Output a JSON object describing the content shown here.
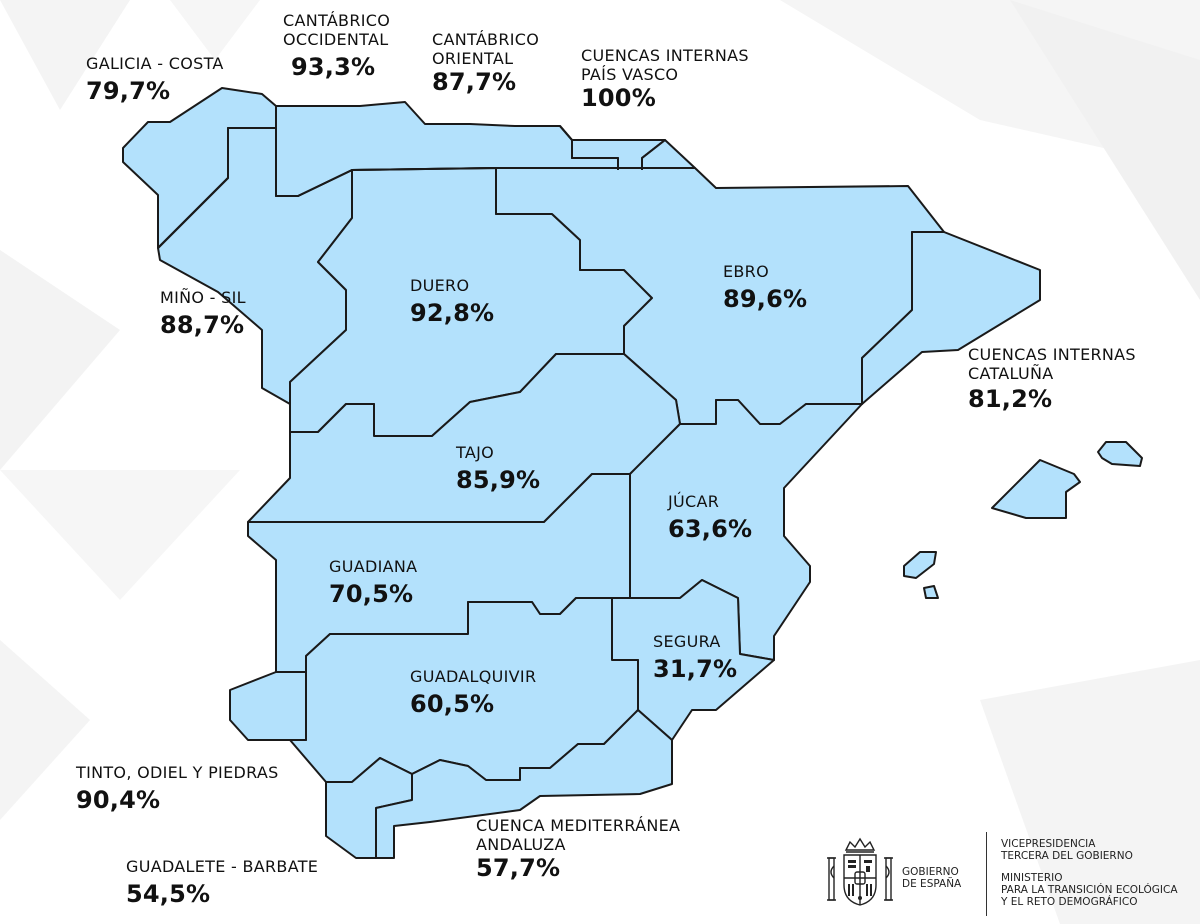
{
  "colors": {
    "basin_fill": "#b3e1fc",
    "basin_stroke": "#1a1a1a",
    "text": "#111111",
    "background": "#ffffff",
    "background_shapes": "#f3f3f3"
  },
  "basins": [
    {
      "id": "galicia-costa",
      "name": "GALICIA - COSTA",
      "percent": "79,7%"
    },
    {
      "id": "cantabrico-occidental",
      "name": "CANTÁBRICO OCCIDENTAL",
      "name_lines": [
        "CANTÁBRICO",
        "OCCIDENTAL"
      ],
      "percent": "93,3%"
    },
    {
      "id": "cantabrico-oriental",
      "name": "CANTÁBRICO ORIENTAL",
      "name_lines": [
        "CANTÁBRICO",
        "ORIENTAL"
      ],
      "percent": "87,7%"
    },
    {
      "id": "pais-vasco",
      "name": "CUENCAS INTERNAS PAÍS VASCO",
      "name_lines": [
        "CUENCAS INTERNAS",
        "PAÍS VASCO"
      ],
      "percent": "100%"
    },
    {
      "id": "mino-sil",
      "name": "MIÑO - SIL",
      "percent": "88,7%"
    },
    {
      "id": "duero",
      "name": "DUERO",
      "percent": "92,8%"
    },
    {
      "id": "ebro",
      "name": "EBRO",
      "percent": "89,6%"
    },
    {
      "id": "cataluna",
      "name": "CUENCAS INTERNAS CATALUÑA",
      "name_lines": [
        "CUENCAS INTERNAS",
        "CATALUÑA"
      ],
      "percent": "81,2%"
    },
    {
      "id": "tajo",
      "name": "TAJO",
      "percent": "85,9%"
    },
    {
      "id": "jucar",
      "name": "JÚCAR",
      "percent": "63,6%"
    },
    {
      "id": "guadiana",
      "name": "GUADIANA",
      "percent": "70,5%"
    },
    {
      "id": "segura",
      "name": "SEGURA",
      "percent": "31,7%"
    },
    {
      "id": "guadalquivir",
      "name": "GUADALQUIVIR",
      "percent": "60,5%"
    },
    {
      "id": "tinto-odiel-piedras",
      "name": "TINTO, ODIEL Y PIEDRAS",
      "percent": "90,4%"
    },
    {
      "id": "mediterranea-andaluza",
      "name": "CUENCA MEDITERRÁNEA ANDALUZA",
      "name_lines": [
        "CUENCA MEDITERRÁNEA",
        "ANDALUZA"
      ],
      "percent": "57,7%"
    },
    {
      "id": "guadalete-barbate",
      "name": "GUADALETE - BARBATE",
      "percent": "54,5%"
    }
  ],
  "footer": {
    "gobierno_lines": [
      "GOBIERNO",
      "DE ESPAÑA"
    ],
    "vicepresidencia_lines": [
      "VICEPRESIDENCIA",
      "TERCERA DEL GOBIERNO"
    ],
    "ministerio_lines": [
      "MINISTERIO",
      "PARA LA TRANSICIÓN ECOLÓGICA",
      "Y EL RETO DEMOGRÁFICO"
    ],
    "coat_of_arms_icon": "spain-coat-of-arms-icon"
  }
}
